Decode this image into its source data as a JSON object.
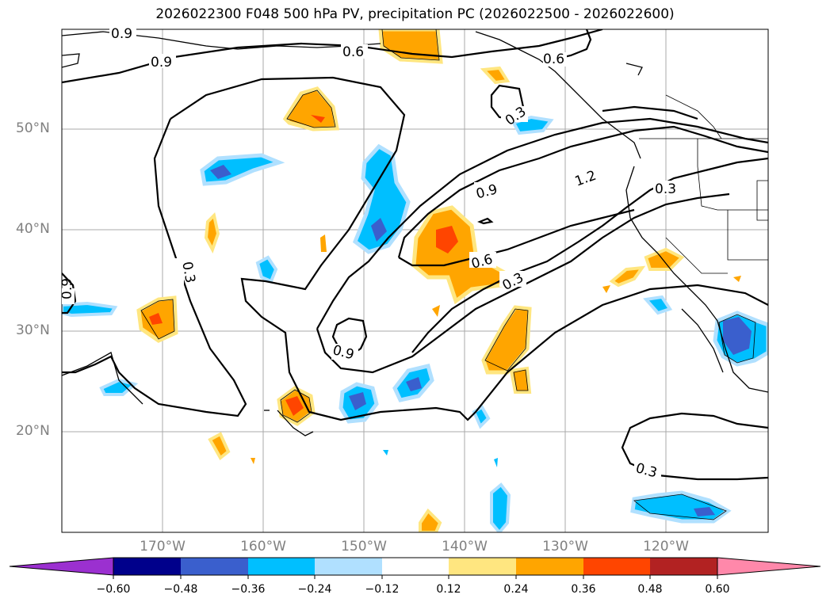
{
  "title": "2026022300 F048 500 hPa PV, precipitation PC (2026022500 - 2026022600)",
  "lat_labels": [
    "50°N",
    "40°N",
    "30°N",
    "20°N"
  ],
  "lon_labels": [
    "170°W",
    "160°W",
    "150°W",
    "140°W",
    "130°W",
    "120°W"
  ],
  "contour_labels": [
    "0.9",
    "0.9",
    "0.6",
    "0.6",
    "0.3",
    "0.9",
    "1.2",
    "0.3",
    "0.3",
    "0.6",
    "0.3",
    "0.9",
    "0.3",
    "0.9"
  ],
  "colorbar": {
    "ticks": [
      "−0.60",
      "−0.48",
      "−0.36",
      "−0.24",
      "−0.12",
      "0.12",
      "0.24",
      "0.36",
      "0.48",
      "0.60"
    ],
    "colors": [
      "#9b30d0",
      "#00008b",
      "#3a5fcd",
      "#00bfff",
      "#b0e0ff",
      "#ffffff",
      "#ffe680",
      "#ffa500",
      "#ff4500",
      "#b22222",
      "#ff88aa"
    ]
  }
}
